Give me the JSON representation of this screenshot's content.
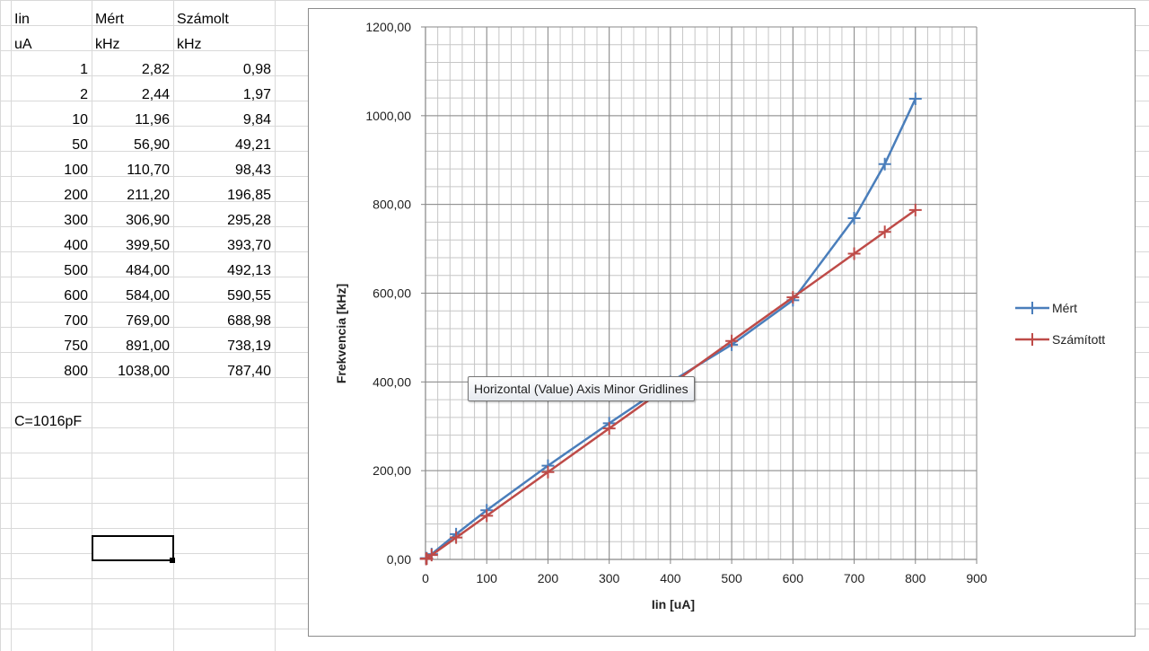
{
  "sheet": {
    "headers": [
      "Iin",
      "Mért",
      "Számolt"
    ],
    "units": [
      "uA",
      "kHz",
      "kHz"
    ],
    "rows": [
      [
        "1",
        "2,82",
        "0,98"
      ],
      [
        "2",
        "2,44",
        "1,97"
      ],
      [
        "10",
        "11,96",
        "9,84"
      ],
      [
        "50",
        "56,90",
        "49,21"
      ],
      [
        "100",
        "110,70",
        "98,43"
      ],
      [
        "200",
        "211,20",
        "196,85"
      ],
      [
        "300",
        "306,90",
        "295,28"
      ],
      [
        "400",
        "399,50",
        "393,70"
      ],
      [
        "500",
        "484,00",
        "492,13"
      ],
      [
        "600",
        "584,00",
        "590,55"
      ],
      [
        "700",
        "769,00",
        "688,98"
      ],
      [
        "750",
        "891,00",
        "738,19"
      ],
      [
        "800",
        "1038,00",
        "787,40"
      ]
    ],
    "note": "C=1016pF"
  },
  "tooltip": "Horizontal (Value) Axis Minor Gridlines",
  "chart_data": {
    "type": "scatter",
    "xlabel": "Iin [uA]",
    "ylabel": "Frekvencia [kHz]",
    "xlim": [
      0,
      900
    ],
    "ylim": [
      0,
      1200
    ],
    "x_ticks": [
      "0",
      "100",
      "200",
      "300",
      "400",
      "500",
      "600",
      "700",
      "800",
      "900"
    ],
    "y_ticks": [
      "0,00",
      "200,00",
      "400,00",
      "600,00",
      "800,00",
      "1000,00",
      "1200,00"
    ],
    "grid": true,
    "legend_position": "right",
    "x": [
      1,
      2,
      10,
      50,
      100,
      200,
      300,
      400,
      500,
      600,
      700,
      750,
      800
    ],
    "series": [
      {
        "name": "Mért",
        "color": "#4a7ebb",
        "values": [
          2.82,
          2.44,
          11.96,
          56.9,
          110.7,
          211.2,
          306.9,
          399.5,
          484.0,
          584.0,
          769.0,
          891.0,
          1038.0
        ]
      },
      {
        "name": "Számított",
        "color": "#be4b48",
        "values": [
          0.98,
          1.97,
          9.84,
          49.21,
          98.43,
          196.85,
          295.28,
          393.7,
          492.13,
          590.55,
          688.98,
          738.19,
          787.4
        ]
      }
    ]
  }
}
